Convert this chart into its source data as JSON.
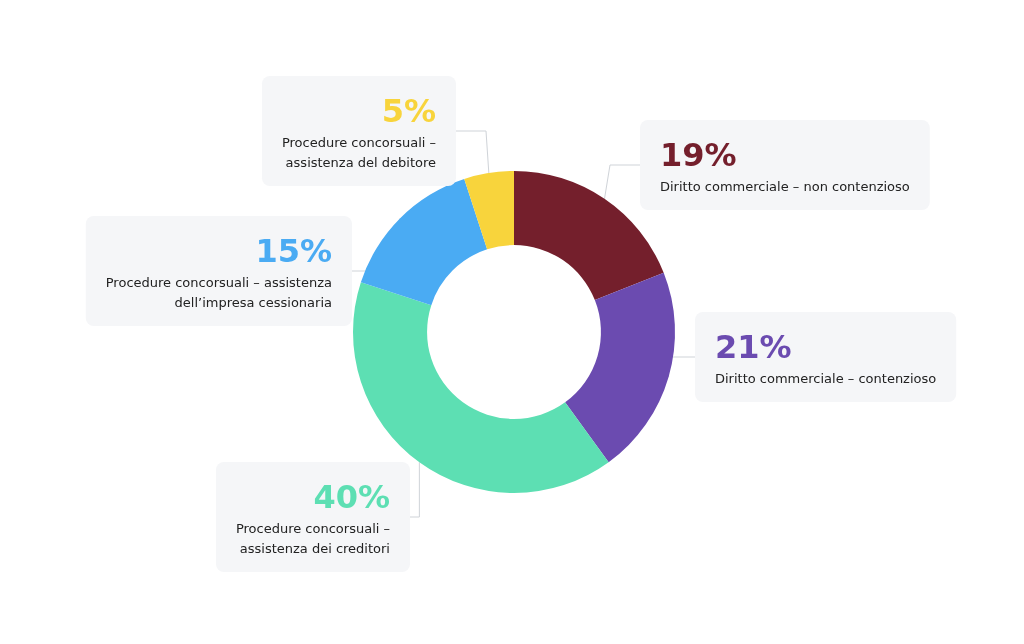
{
  "chart_data": {
    "type": "donut",
    "categories": [
      "Diritto commerciale – non contenzioso",
      "Diritto commerciale – contenzioso",
      "Procedure concorsuali – assistenza dei creditori",
      "Procedure concorsuali – assistenza dell’impresa cessionaria",
      "Procedure concorsuali – assistenza del debitore"
    ],
    "values": [
      19,
      21,
      40,
      15,
      5
    ],
    "value_labels": [
      "19%",
      "21%",
      "40%",
      "15%",
      "5%"
    ],
    "colors": [
      "#741f2c",
      "#6b4bb0",
      "#5ddfb3",
      "#4aabf3",
      "#f8d43c"
    ],
    "legend": false
  }
}
